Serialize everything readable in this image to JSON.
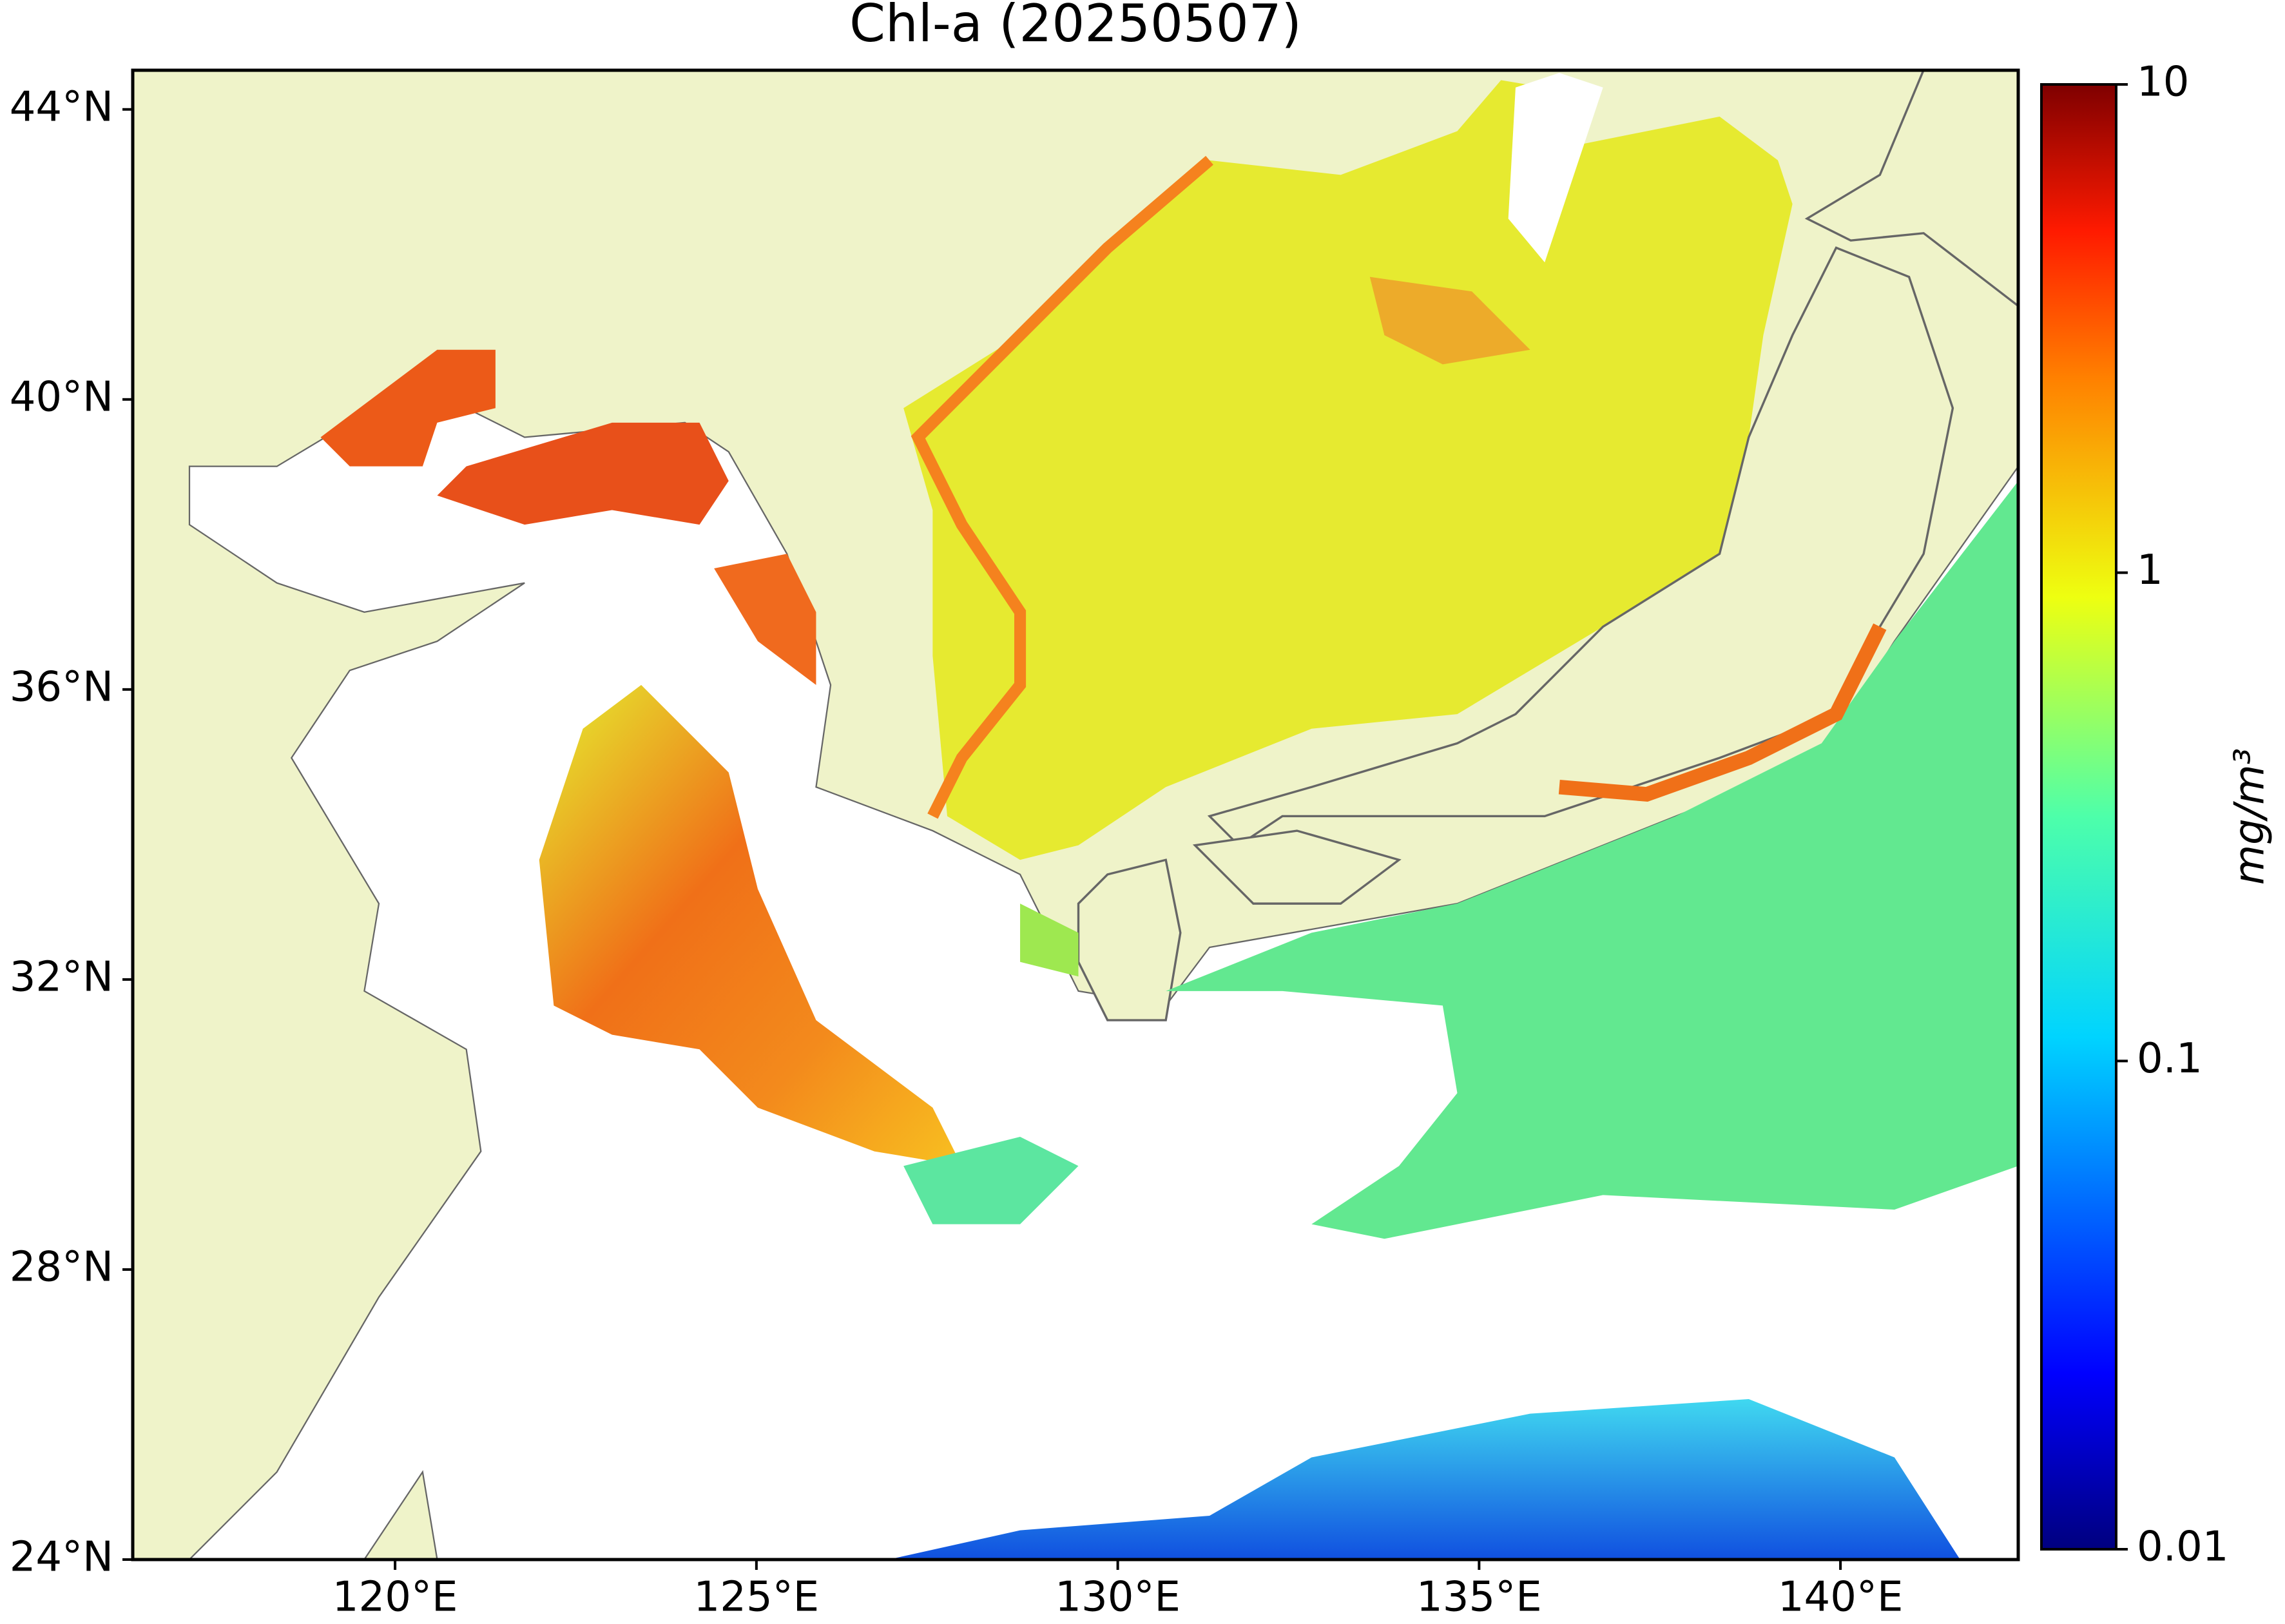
{
  "title": "Chl-a (20250507)",
  "map": {
    "xlim": [
      116.37,
      142.46
    ],
    "ylim": [
      24,
      44.54
    ],
    "xticks": [
      {
        "value": 120,
        "label": "120°E"
      },
      {
        "value": 125,
        "label": "125°E"
      },
      {
        "value": 130,
        "label": "130°E"
      },
      {
        "value": 135,
        "label": "135°E"
      },
      {
        "value": 140,
        "label": "140°E"
      }
    ],
    "yticks": [
      {
        "value": 24,
        "label": "24°N"
      },
      {
        "value": 28,
        "label": "28°N"
      },
      {
        "value": 32,
        "label": "32°N"
      },
      {
        "value": 36,
        "label": "36°N"
      },
      {
        "value": 40,
        "label": "40°N"
      },
      {
        "value": 44,
        "label": "44°N"
      }
    ]
  },
  "colorbar": {
    "label": "mg/m³",
    "scale": "log",
    "lim": [
      0.01,
      10
    ],
    "ticks": [
      0.01,
      0.1,
      1,
      10
    ]
  }
}
